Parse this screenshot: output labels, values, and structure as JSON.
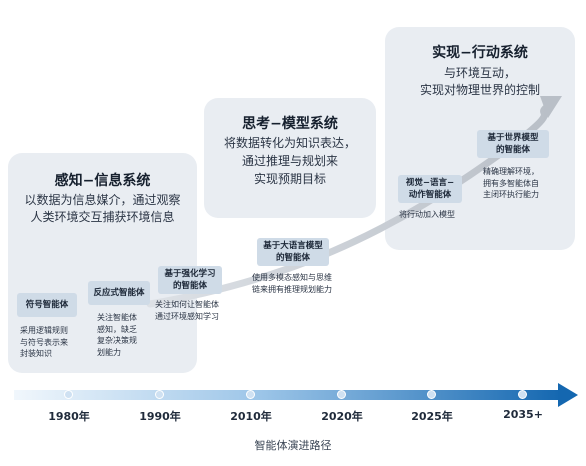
{
  "systems": [
    {
      "title": "感知−信息系统",
      "desc": [
        "以数据为信息媒介，通过观察",
        "人类环境交互捕获环境信息"
      ]
    },
    {
      "title": "思考−模型系统",
      "desc": [
        "将数据转化为知识表达，",
        "通过推理与规划来",
        "实现预期目标"
      ]
    },
    {
      "title": "实现−行动系统",
      "desc": [
        "与环境互动，",
        "实现对物理世界的控制"
      ]
    }
  ],
  "stages": [
    {
      "label": "符号智能体",
      "desc": "采用逻辑规则\n与符号表示来\n封装知识"
    },
    {
      "label": "反应式智能体",
      "desc": "关注智能体\n感知，缺乏\n复杂决策规\n划能力"
    },
    {
      "label": "基于强化学习\n的智能体",
      "desc": "关注如何让智能体\n通过环境感知学习"
    },
    {
      "label": "基于大语言模型\n的智能体",
      "desc": "使用多模态感知与思维\n链来拥有推理规划能力"
    },
    {
      "label": "视觉−语言−\n动作智能体",
      "desc": "将行动加入模型"
    },
    {
      "label": "基于世界模型\n的智能体",
      "desc": "精确理解环境，\n拥有多智能体自\n主闭环执行能力"
    }
  ],
  "timeline": {
    "years": [
      "1980年",
      "1990年",
      "2010年",
      "2020年",
      "2025年",
      "2035+"
    ],
    "caption": "智能体演进路径"
  },
  "colors": {
    "panel": "#e9edf2",
    "stage_box": "#cfdbe7",
    "timeline_start": "#eaf3fb",
    "timeline_end": "#1467b0",
    "trend_arrow": "#c7ccd3"
  }
}
